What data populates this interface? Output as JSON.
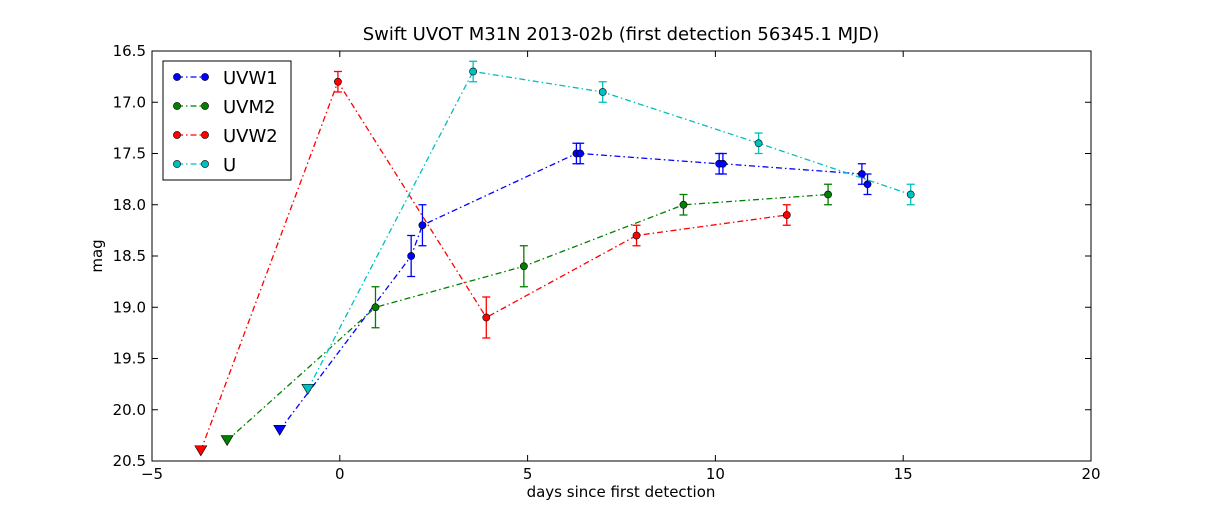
{
  "chart_data": {
    "type": "scatter",
    "title": "Swift UVOT M31N 2013-02b (first detection 56345.1 MJD)",
    "xlabel": "days since first detection",
    "ylabel": "mag",
    "xlim": [
      -5,
      20
    ],
    "ylim": [
      16.5,
      20.5
    ],
    "y_inverted": true,
    "x_ticks": [
      "−5",
      "0",
      "5",
      "10",
      "15",
      "20"
    ],
    "y_ticks": [
      "16.5",
      "17.0",
      "17.5",
      "18.0",
      "18.5",
      "19.0",
      "19.5",
      "20.0",
      "20.5"
    ],
    "grid": false,
    "legend_position": "top-left",
    "series": [
      {
        "name": "UVW1",
        "color": "#0000ff",
        "upper_limit": {
          "x": -1.6,
          "y": 20.2
        },
        "points": [
          {
            "x": 1.9,
            "y": 18.5,
            "err": 0.2
          },
          {
            "x": 2.2,
            "y": 18.2,
            "err": 0.2
          },
          {
            "x": 6.3,
            "y": 17.5,
            "err": 0.1
          },
          {
            "x": 6.4,
            "y": 17.5,
            "err": 0.1
          },
          {
            "x": 10.1,
            "y": 17.6,
            "err": 0.1
          },
          {
            "x": 10.2,
            "y": 17.6,
            "err": 0.1
          },
          {
            "x": 13.9,
            "y": 17.7,
            "err": 0.1
          },
          {
            "x": 14.05,
            "y": 17.8,
            "err": 0.1
          }
        ]
      },
      {
        "name": "UVM2",
        "color": "#007f00",
        "upper_limit": {
          "x": -3.0,
          "y": 20.3
        },
        "points": [
          {
            "x": 0.95,
            "y": 19.0,
            "err": 0.2
          },
          {
            "x": 4.9,
            "y": 18.6,
            "err": 0.2
          },
          {
            "x": 9.15,
            "y": 18.0,
            "err": 0.1
          },
          {
            "x": 13.0,
            "y": 17.9,
            "err": 0.1
          }
        ]
      },
      {
        "name": "UVW2",
        "color": "#ff0000",
        "upper_limit": {
          "x": -3.7,
          "y": 20.4
        },
        "points": [
          {
            "x": -0.05,
            "y": 16.8,
            "err": 0.1
          },
          {
            "x": 3.9,
            "y": 19.1,
            "err": 0.2
          },
          {
            "x": 7.9,
            "y": 18.3,
            "err": 0.1
          },
          {
            "x": 11.9,
            "y": 18.1,
            "err": 0.1
          }
        ]
      },
      {
        "name": "U",
        "color": "#00bfbf",
        "upper_limit": {
          "x": -0.85,
          "y": 19.8
        },
        "points": [
          {
            "x": 3.55,
            "y": 16.7,
            "err": 0.1
          },
          {
            "x": 7.0,
            "y": 16.9,
            "err": 0.1
          },
          {
            "x": 11.15,
            "y": 17.4,
            "err": 0.1
          },
          {
            "x": 15.2,
            "y": 17.9,
            "err": 0.1
          }
        ]
      }
    ]
  }
}
